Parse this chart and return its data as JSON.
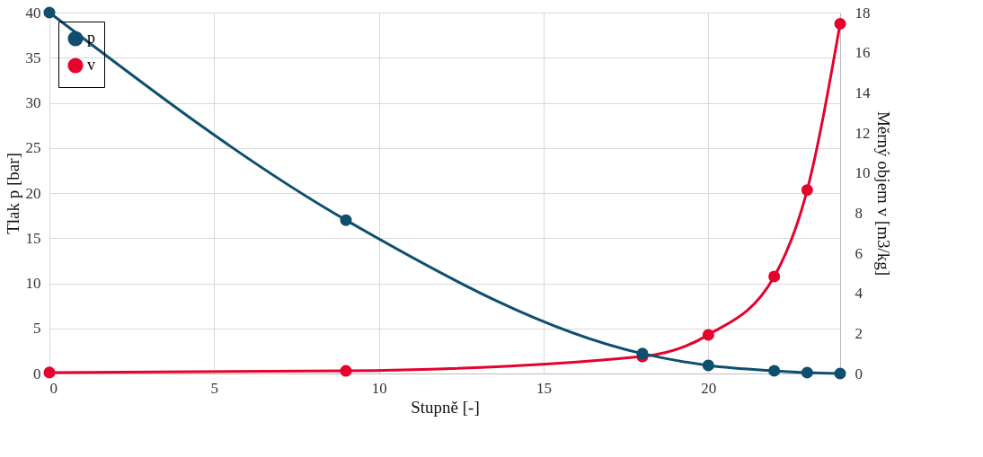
{
  "chart_data": {
    "type": "line",
    "xlabel": "Stupně [-]",
    "ylabel": "Tlak p [bar]",
    "y2label": "Měrný objem v [m3/kg]",
    "xlim": [
      0,
      24
    ],
    "xticks": [
      0,
      5,
      10,
      15,
      20
    ],
    "ylim": [
      0,
      40
    ],
    "yticks": [
      0,
      5,
      10,
      15,
      20,
      25,
      30,
      35,
      40
    ],
    "y2lim": [
      0,
      18
    ],
    "y2ticks": [
      0,
      2,
      4,
      6,
      8,
      10,
      12,
      14,
      16,
      18
    ],
    "x": [
      0,
      9,
      18,
      20,
      22,
      23,
      24
    ],
    "series": [
      {
        "name": "p",
        "color": "#0e4f6e",
        "values": [
          40,
          17,
          2.2,
          0.9,
          0.3,
          0.1,
          0
        ]
      },
      {
        "name": "v",
        "color": "#e4032e",
        "axis": "y2",
        "values": [
          0.05,
          0.13,
          0.85,
          1.93,
          4.84,
          9.15,
          17.44
        ]
      }
    ],
    "grid": true,
    "legend": "top left",
    "marker": "circle",
    "line_style": "solid"
  }
}
